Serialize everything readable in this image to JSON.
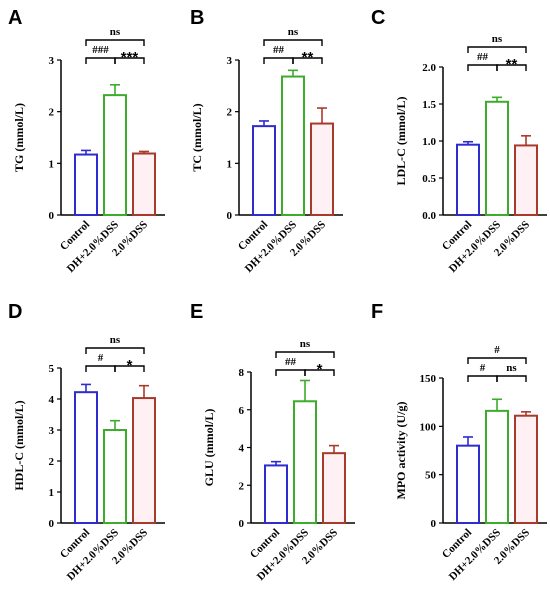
{
  "colors": {
    "control": "#2e2bd0",
    "dh": "#3dab2c",
    "dss": "#a83a2b",
    "dss_fill": "#fff0f4"
  },
  "chart_data": [
    {
      "type": "bar",
      "letter": "A",
      "ylabel": "TG (mmol/L)",
      "categories": [
        "Control",
        "DH+2.0%DSS",
        "2.0%DSS"
      ],
      "values": [
        1.17,
        2.32,
        1.19
      ],
      "errors": [
        0.08,
        0.2,
        0.04
      ],
      "ylim": [
        0,
        3
      ],
      "yticks": [
        "0",
        "1",
        "2",
        "3"
      ],
      "comparisons": [
        {
          "label": "ns",
          "from": 0,
          "to": 2
        },
        {
          "label": "###",
          "from": 0,
          "to": 1
        },
        {
          "label": "***",
          "from": 1,
          "to": 2
        }
      ]
    },
    {
      "type": "bar",
      "letter": "B",
      "ylabel": "TC (mmol/L)",
      "categories": [
        "Control",
        "DH+2.0%DSS",
        "2.0%DSS"
      ],
      "values": [
        1.72,
        2.68,
        1.77
      ],
      "errors": [
        0.1,
        0.12,
        0.3
      ],
      "ylim": [
        0,
        3
      ],
      "yticks": [
        "0",
        "1",
        "2",
        "3"
      ],
      "comparisons": [
        {
          "label": "ns",
          "from": 0,
          "to": 2
        },
        {
          "label": "##",
          "from": 0,
          "to": 1
        },
        {
          "label": "**",
          "from": 1,
          "to": 2
        }
      ]
    },
    {
      "type": "bar",
      "letter": "C",
      "ylabel": "LDL-C (mmol/L)",
      "categories": [
        "Control",
        "DH+2.0%DSS",
        "2.0%DSS"
      ],
      "values": [
        0.95,
        1.53,
        0.94
      ],
      "errors": [
        0.04,
        0.06,
        0.13
      ],
      "ylim": [
        0,
        2.0
      ],
      "yticks": [
        "0.0",
        "0.5",
        "1.0",
        "1.5",
        "2.0"
      ],
      "comparisons": [
        {
          "label": "ns",
          "from": 0,
          "to": 2
        },
        {
          "label": "##",
          "from": 0,
          "to": 1
        },
        {
          "label": "**",
          "from": 1,
          "to": 2
        }
      ]
    },
    {
      "type": "bar",
      "letter": "D",
      "ylabel": "HDL-C (mmol/L)",
      "categories": [
        "Control",
        "DH+2.0%DSS",
        "2.0%DSS"
      ],
      "values": [
        4.22,
        3.0,
        4.03
      ],
      "errors": [
        0.25,
        0.3,
        0.4
      ],
      "ylim": [
        0,
        5
      ],
      "yticks": [
        "0",
        "1",
        "2",
        "3",
        "4",
        "5"
      ],
      "comparisons": [
        {
          "label": "ns",
          "from": 0,
          "to": 2
        },
        {
          "label": "#",
          "from": 0,
          "to": 1
        },
        {
          "label": "*",
          "from": 1,
          "to": 2
        }
      ]
    },
    {
      "type": "bar",
      "letter": "E",
      "ylabel": "GLU (mmol/L)",
      "categories": [
        "Control",
        "DH+2.0%DSS",
        "2.0%DSS"
      ],
      "values": [
        3.05,
        6.45,
        3.7
      ],
      "errors": [
        0.2,
        1.1,
        0.4
      ],
      "ylim": [
        0,
        8
      ],
      "yticks": [
        "0",
        "2",
        "4",
        "6",
        "8"
      ],
      "comparisons": [
        {
          "label": "ns",
          "from": 0,
          "to": 2
        },
        {
          "label": "##",
          "from": 0,
          "to": 1
        },
        {
          "label": "*",
          "from": 1,
          "to": 2
        }
      ]
    },
    {
      "type": "bar",
      "letter": "F",
      "ylabel": "MPO activity (U/g)",
      "categories": [
        "Control",
        "DH+2.0%DSS",
        "2.0%DSS"
      ],
      "values": [
        80,
        116,
        111
      ],
      "errors": [
        9,
        12,
        4
      ],
      "ylim": [
        0,
        150
      ],
      "yticks": [
        "0",
        "50",
        "100",
        "150"
      ],
      "comparisons": [
        {
          "label": "#",
          "from": 0,
          "to": 2
        },
        {
          "label": "#",
          "from": 0,
          "to": 1
        },
        {
          "label": "ns",
          "from": 1,
          "to": 2
        }
      ]
    }
  ]
}
